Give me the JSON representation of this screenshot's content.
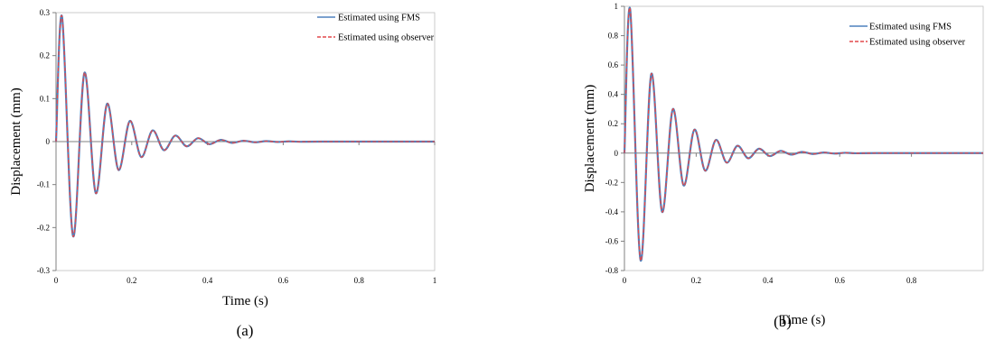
{
  "chart_data": [
    {
      "type": "line",
      "panel_label": "(a)",
      "xlabel": "Time (s)",
      "ylabel": "Displacement (mm)",
      "xlim": [
        0,
        1
      ],
      "ylim": [
        -0.3,
        0.3
      ],
      "xticks": [
        0,
        0.2,
        0.4,
        0.6,
        0.8,
        1
      ],
      "yticks": [
        0.3,
        0.2,
        0.1,
        0,
        -0.1,
        -0.2,
        -0.3
      ],
      "xtick_labels": [
        "0",
        "0.2",
        "0.4",
        "0.6",
        "0.8",
        "1"
      ],
      "ytick_labels": [
        "0.3",
        "0.2",
        "0.1",
        "0",
        "-0.1",
        "-0.2",
        "-0.3"
      ],
      "grid": false,
      "legend_position": "top-right",
      "series": [
        {
          "name": "Estimated using FMS",
          "color": "#4f81bd",
          "style": "solid",
          "x": [
            0,
            0.016,
            0.045,
            0.075,
            0.105,
            0.135,
            0.165,
            0.195,
            0.225,
            0.255,
            0.285,
            0.315,
            0.345,
            0.375,
            0.405,
            0.435,
            0.465,
            0.495,
            0.525,
            0.555,
            0.585,
            0.615,
            0.645,
            0.7,
            1.0
          ],
          "y": [
            0,
            0.29,
            -0.22,
            0.16,
            -0.12,
            0.088,
            -0.066,
            0.048,
            -0.036,
            0.026,
            -0.02,
            0.014,
            -0.011,
            0.008,
            -0.006,
            0.004,
            -0.003,
            0.002,
            -0.0015,
            0.001,
            -0.0008,
            0.0005,
            -0.0004,
            0,
            0
          ]
        },
        {
          "name": "Estimated using observer",
          "color": "#e2484b",
          "style": "dashed",
          "x": [
            0,
            0.016,
            0.045,
            0.075,
            0.105,
            0.135,
            0.165,
            0.195,
            0.225,
            0.255,
            0.285,
            0.315,
            0.345,
            0.375,
            0.405,
            0.435,
            0.465,
            0.495,
            0.525,
            0.555,
            0.585,
            0.615,
            0.645,
            0.7,
            1.0
          ],
          "y": [
            0,
            0.29,
            -0.22,
            0.16,
            -0.12,
            0.088,
            -0.066,
            0.048,
            -0.036,
            0.026,
            -0.02,
            0.014,
            -0.011,
            0.008,
            -0.006,
            0.004,
            -0.003,
            0.002,
            -0.0015,
            0.001,
            -0.0008,
            0.0005,
            -0.0004,
            0,
            0
          ]
        }
      ]
    },
    {
      "type": "line",
      "panel_label": "(b)",
      "xlabel": "Time (s)",
      "ylabel": "Displacement (mm)",
      "xlim": [
        0,
        1
      ],
      "ylim": [
        -0.8,
        1
      ],
      "xticks": [
        0,
        0.2,
        0.4,
        0.6,
        0.8
      ],
      "yticks": [
        1,
        0.8,
        0.6,
        0.4,
        0.2,
        0,
        -0.2,
        -0.4,
        -0.6,
        -0.8
      ],
      "xtick_labels": [
        "0",
        "0.2",
        "0.4",
        "0.6",
        "0.8"
      ],
      "ytick_labels": [
        "1",
        "0.8",
        "0.6",
        "0.4",
        "0.2",
        "0",
        "-0.2",
        "-0.4",
        "-0.6",
        "-0.8"
      ],
      "grid": false,
      "legend_position": "top-right",
      "series": [
        {
          "name": "Estimated using FMS",
          "color": "#4f81bd",
          "style": "solid",
          "x": [
            0,
            0.016,
            0.045,
            0.075,
            0.105,
            0.135,
            0.165,
            0.195,
            0.225,
            0.255,
            0.285,
            0.315,
            0.345,
            0.375,
            0.405,
            0.435,
            0.465,
            0.495,
            0.525,
            0.555,
            0.585,
            0.615,
            0.645,
            0.7,
            1.0
          ],
          "y": [
            0,
            0.98,
            -0.73,
            0.54,
            -0.4,
            0.3,
            -0.22,
            0.16,
            -0.12,
            0.09,
            -0.065,
            0.05,
            -0.035,
            0.03,
            -0.02,
            0.015,
            -0.01,
            0.008,
            -0.006,
            0.004,
            -0.003,
            0.002,
            -0.001,
            0,
            0
          ]
        },
        {
          "name": "Estimated using observer",
          "color": "#e2484b",
          "style": "dashed",
          "x": [
            0,
            0.016,
            0.045,
            0.075,
            0.105,
            0.135,
            0.165,
            0.195,
            0.225,
            0.255,
            0.285,
            0.315,
            0.345,
            0.375,
            0.405,
            0.435,
            0.465,
            0.495,
            0.525,
            0.555,
            0.585,
            0.615,
            0.645,
            0.7,
            1.0
          ],
          "y": [
            0,
            0.98,
            -0.73,
            0.54,
            -0.4,
            0.3,
            -0.22,
            0.16,
            -0.12,
            0.09,
            -0.065,
            0.05,
            -0.035,
            0.03,
            -0.02,
            0.015,
            -0.01,
            0.008,
            -0.006,
            0.004,
            -0.003,
            0.002,
            -0.001,
            0,
            0
          ]
        }
      ]
    }
  ]
}
